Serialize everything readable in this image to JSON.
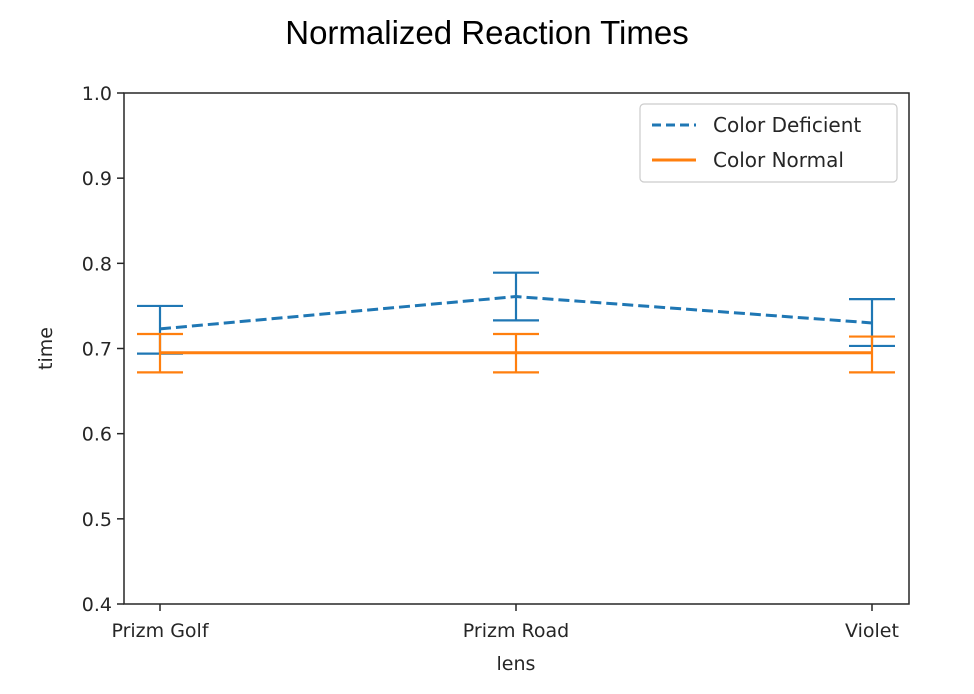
{
  "chart_data": {
    "type": "line",
    "title": "Normalized Reaction Times",
    "xlabel": "lens",
    "ylabel": "time",
    "categories": [
      "Prizm Golf",
      "Prizm Road",
      "Violet"
    ],
    "ylim": [
      0.4,
      1.0
    ],
    "yticks": [
      "0.4",
      "0.5",
      "0.6",
      "0.7",
      "0.8",
      "0.9",
      "1.0"
    ],
    "grid": false,
    "legend_position": "top-right",
    "series": [
      {
        "name": "Color Deficient",
        "color": "#1f77b4",
        "line_style": "dashed",
        "values": [
          0.723,
          0.761,
          0.73
        ],
        "error_low": [
          0.694,
          0.733,
          0.703
        ],
        "error_high": [
          0.75,
          0.789,
          0.758
        ]
      },
      {
        "name": "Color Normal",
        "color": "#ff7f0e",
        "line_style": "solid",
        "values": [
          0.695,
          0.695,
          0.695
        ],
        "error_low": [
          0.672,
          0.672,
          0.672
        ],
        "error_high": [
          0.717,
          0.717,
          0.714
        ]
      }
    ]
  }
}
